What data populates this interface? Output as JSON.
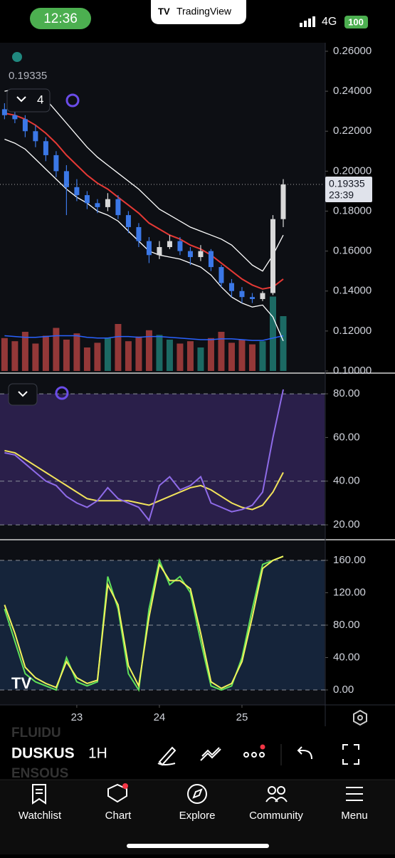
{
  "status_bar": {
    "time": "12:36",
    "app": "TradingView",
    "network": "4G",
    "battery": "100"
  },
  "chart_data": [
    {
      "type": "candlestick",
      "collapsed_indicators": 4,
      "countdown": "23:39",
      "xlim": [
        22.07,
        26.0
      ],
      "xticks": [
        23,
        24,
        25
      ],
      "ylim": [
        0.1,
        0.26
      ],
      "yticks": [
        {
          "value": 0.1,
          "label": "0.10000"
        },
        {
          "value": 0.12,
          "label": "0.12000"
        },
        {
          "value": 0.14,
          "label": "0.14000"
        },
        {
          "value": 0.16,
          "label": "0.16000"
        },
        {
          "value": 0.18,
          "label": "0.18000"
        },
        {
          "value": 0.2,
          "label": "0.20000"
        },
        {
          "value": 0.22,
          "label": "0.22000"
        },
        {
          "value": 0.24,
          "label": "0.24000"
        },
        {
          "value": 0.26,
          "label": "0.26000"
        }
      ],
      "x": [
        22.125,
        22.25,
        22.375,
        22.5,
        22.625,
        22.75,
        22.875,
        23,
        23.125,
        23.25,
        23.375,
        23.5,
        23.625,
        23.75,
        23.875,
        24,
        24.125,
        24.25,
        24.375,
        24.5,
        24.625,
        24.75,
        24.875,
        25,
        25.125,
        25.25,
        25.375,
        25.5
      ],
      "open": [
        0.231,
        0.228,
        0.226,
        0.22,
        0.215,
        0.208,
        0.2,
        0.192,
        0.188,
        0.184,
        0.182,
        0.186,
        0.178,
        0.172,
        0.165,
        0.158,
        0.162,
        0.165,
        0.16,
        0.157,
        0.16,
        0.152,
        0.144,
        0.14,
        0.137,
        0.136,
        0.139,
        0.176
      ],
      "high": [
        0.234,
        0.231,
        0.228,
        0.223,
        0.217,
        0.21,
        0.203,
        0.196,
        0.19,
        0.186,
        0.189,
        0.188,
        0.18,
        0.174,
        0.167,
        0.165,
        0.168,
        0.167,
        0.162,
        0.163,
        0.161,
        0.153,
        0.146,
        0.142,
        0.139,
        0.14,
        0.178,
        0.196
      ],
      "low": [
        0.226,
        0.224,
        0.217,
        0.212,
        0.205,
        0.197,
        0.178,
        0.185,
        0.181,
        0.179,
        0.18,
        0.176,
        0.169,
        0.162,
        0.154,
        0.156,
        0.161,
        0.158,
        0.153,
        0.155,
        0.15,
        0.142,
        0.137,
        0.134,
        0.134,
        0.135,
        0.138,
        0.172
      ],
      "close": [
        0.228,
        0.226,
        0.22,
        0.215,
        0.208,
        0.2,
        0.192,
        0.188,
        0.184,
        0.182,
        0.186,
        0.178,
        0.172,
        0.165,
        0.158,
        0.162,
        0.165,
        0.16,
        0.157,
        0.16,
        0.152,
        0.144,
        0.14,
        0.137,
        0.136,
        0.139,
        0.176,
        0.19335
      ],
      "up_color": "#d9d9d9",
      "down_color": "#3b78e7",
      "volume": [
        42,
        38,
        50,
        35,
        45,
        55,
        40,
        48,
        30,
        36,
        42,
        60,
        38,
        44,
        52,
        46,
        40,
        35,
        38,
        30,
        42,
        50,
        36,
        40,
        34,
        38,
        95,
        70
      ],
      "volume_up_color": "#26a69a",
      "volume_down_color": "#ef5350",
      "volume_ma": {
        "color": "#2962ff",
        "values": [
          45,
          44,
          43,
          43,
          44,
          45,
          45,
          45,
          43,
          42,
          42,
          44,
          44,
          43,
          44,
          44,
          43,
          42,
          41,
          40,
          40,
          41,
          41,
          40,
          39,
          39,
          42,
          45
        ]
      },
      "series": [
        {
          "color": "#ffffff",
          "values": [
            0.24,
            0.241,
            0.241,
            0.24,
            0.236,
            0.23,
            0.224,
            0.218,
            0.212,
            0.207,
            0.203,
            0.199,
            0.195,
            0.191,
            0.186,
            0.181,
            0.178,
            0.175,
            0.172,
            0.17,
            0.168,
            0.166,
            0.163,
            0.158,
            0.153,
            0.15,
            0.158,
            0.168
          ]
        },
        {
          "color": "#ffffff",
          "values": [
            0.216,
            0.214,
            0.211,
            0.206,
            0.201,
            0.196,
            0.191,
            0.187,
            0.184,
            0.18,
            0.178,
            0.175,
            0.17,
            0.165,
            0.16,
            0.158,
            0.157,
            0.156,
            0.154,
            0.152,
            0.148,
            0.142,
            0.137,
            0.134,
            0.132,
            0.133,
            0.127,
            0.115
          ]
        },
        {
          "color": "#e53935",
          "values": [
            0.229,
            0.228,
            0.226,
            0.223,
            0.219,
            0.214,
            0.208,
            0.203,
            0.198,
            0.194,
            0.191,
            0.187,
            0.183,
            0.179,
            0.174,
            0.171,
            0.168,
            0.166,
            0.163,
            0.161,
            0.158,
            0.154,
            0.15,
            0.146,
            0.143,
            0.141,
            0.142,
            0.146
          ]
        }
      ]
    },
    {
      "type": "line",
      "ylim": [
        13.5,
        88.5
      ],
      "yticks": [
        {
          "value": 20,
          "label": "20.00"
        },
        {
          "value": 40,
          "label": "40.00"
        },
        {
          "value": 60,
          "label": "60.00"
        },
        {
          "value": 80,
          "label": "80.00"
        }
      ],
      "levels": [
        20,
        40,
        80
      ],
      "band_color": "#2a1f4a",
      "series": [
        {
          "color": "#f2e35b",
          "values": [
            54,
            53,
            50,
            47,
            44,
            41,
            38,
            35,
            32,
            31,
            31,
            31,
            31,
            30,
            29,
            31,
            33,
            35,
            37,
            38,
            36,
            33,
            30,
            28,
            27,
            29,
            35,
            44
          ]
        },
        {
          "color": "#8e6be8",
          "values": [
            53,
            52,
            48,
            44,
            40,
            38,
            33,
            30,
            28,
            31,
            37,
            32,
            30,
            28,
            22,
            38,
            42,
            36,
            38,
            42,
            30,
            28,
            26,
            27,
            29,
            35,
            60,
            82
          ]
        }
      ]
    },
    {
      "type": "line",
      "ylim": [
        -18.5,
        184.6
      ],
      "yticks": [
        {
          "value": 0,
          "label": "0.00"
        },
        {
          "value": 40,
          "label": "40.00"
        },
        {
          "value": 80,
          "label": "80.00"
        },
        {
          "value": 120,
          "label": "120.00"
        },
        {
          "value": 160,
          "label": "160.00"
        }
      ],
      "levels": [
        0,
        80,
        160
      ],
      "band_color": "#15243a",
      "series": [
        {
          "color": "#5fe05a",
          "values": [
            100,
            60,
            20,
            10,
            5,
            0,
            40,
            10,
            5,
            10,
            140,
            100,
            20,
            0,
            100,
            160,
            130,
            140,
            120,
            60,
            5,
            0,
            5,
            40,
            100,
            155,
            160,
            165
          ]
        },
        {
          "color": "#f2f25b",
          "values": [
            105,
            70,
            28,
            15,
            8,
            3,
            35,
            15,
            8,
            12,
            130,
            105,
            30,
            5,
            90,
            155,
            135,
            135,
            125,
            70,
            10,
            2,
            8,
            35,
            90,
            150,
            160,
            165
          ]
        }
      ]
    }
  ],
  "toolbar": {
    "symbol": "DUSKUS",
    "interval": "1H",
    "ghost_above": "FLUIDU",
    "ghost_below": "ENSOUS"
  },
  "nav": [
    "Watchlist",
    "Chart",
    "Explore",
    "Community",
    "Menu"
  ]
}
